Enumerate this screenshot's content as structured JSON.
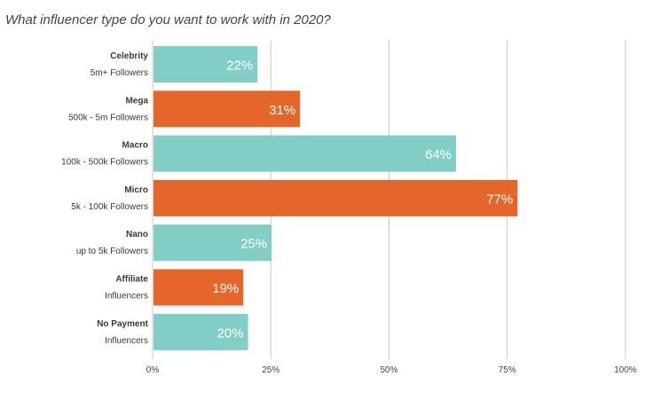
{
  "chart_data": {
    "type": "bar",
    "orientation": "horizontal",
    "title": "What influencer type do you want to work with in 2020?",
    "xlabel": "",
    "ylabel": "",
    "xlim": [
      0,
      100
    ],
    "grid": true,
    "legend": "none",
    "categories": [
      {
        "name": "Celebrity",
        "sub": "5m+ Followers"
      },
      {
        "name": "Mega",
        "sub": "500k - 5m Followers"
      },
      {
        "name": "Macro",
        "sub": "100k - 500k Followers"
      },
      {
        "name": "Micro",
        "sub": "5k - 100k Followers"
      },
      {
        "name": "Nano",
        "sub": "up to 5k Followers"
      },
      {
        "name": "Affiliate",
        "sub": "Influencers"
      },
      {
        "name": "No Payment",
        "sub": "Influencers"
      }
    ],
    "values": [
      22,
      31,
      64,
      77,
      25,
      19,
      20
    ],
    "value_labels": [
      "22%",
      "31%",
      "64%",
      "77%",
      "25%",
      "19%",
      "20%"
    ],
    "bar_colors": [
      "#82cdc6",
      "#e5662a",
      "#82cdc6",
      "#e5662a",
      "#82cdc6",
      "#e5662a",
      "#82cdc6"
    ],
    "ticks": [
      0,
      25,
      50,
      75,
      100
    ],
    "tick_labels": [
      "0%",
      "25%",
      "50%",
      "75%",
      "100%"
    ]
  }
}
